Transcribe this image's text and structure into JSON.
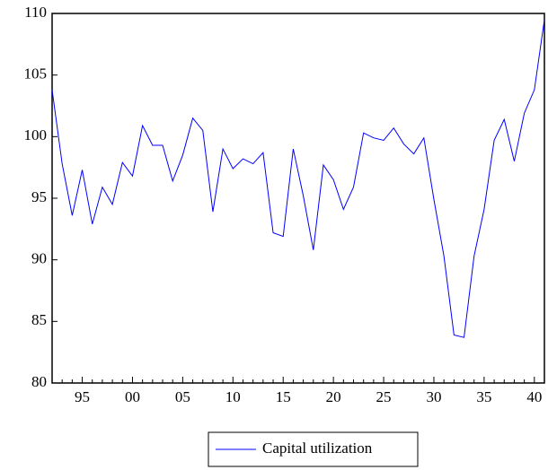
{
  "chart_data": {
    "type": "line",
    "categories": [
      null,
      null,
      null,
      "95",
      null,
      null,
      null,
      null,
      "00",
      null,
      null,
      null,
      null,
      "05",
      null,
      null,
      null,
      null,
      "10",
      null,
      null,
      null,
      null,
      "15",
      null,
      null,
      null,
      null,
      "20",
      null,
      null,
      null,
      null,
      "25",
      null,
      null,
      null,
      null,
      "30",
      null,
      null,
      null,
      null,
      "35",
      null,
      null,
      null,
      null,
      "40",
      null
    ],
    "series": [
      {
        "name": "Capital utilization",
        "color": "#0000ff",
        "values": [
          103.8,
          97.8,
          93.6,
          97.3,
          92.9,
          95.9,
          94.5,
          97.9,
          96.8,
          100.9,
          99.3,
          99.3,
          96.4,
          98.5,
          101.5,
          100.5,
          93.9,
          99.0,
          97.4,
          98.2,
          97.8,
          98.7,
          92.2,
          91.9,
          99.0,
          95.2,
          90.8,
          97.7,
          96.5,
          94.1,
          95.9,
          100.3,
          99.9,
          99.7,
          100.7,
          99.4,
          98.6,
          99.9,
          94.9,
          90.3,
          83.9,
          83.7,
          90.3,
          94.1,
          99.7,
          101.4,
          98.0,
          101.9,
          103.8,
          109.5
        ]
      }
    ],
    "ylim": [
      80,
      110
    ],
    "yticks": [
      80,
      85,
      90,
      95,
      100,
      105,
      110
    ],
    "legend": "bottom"
  }
}
